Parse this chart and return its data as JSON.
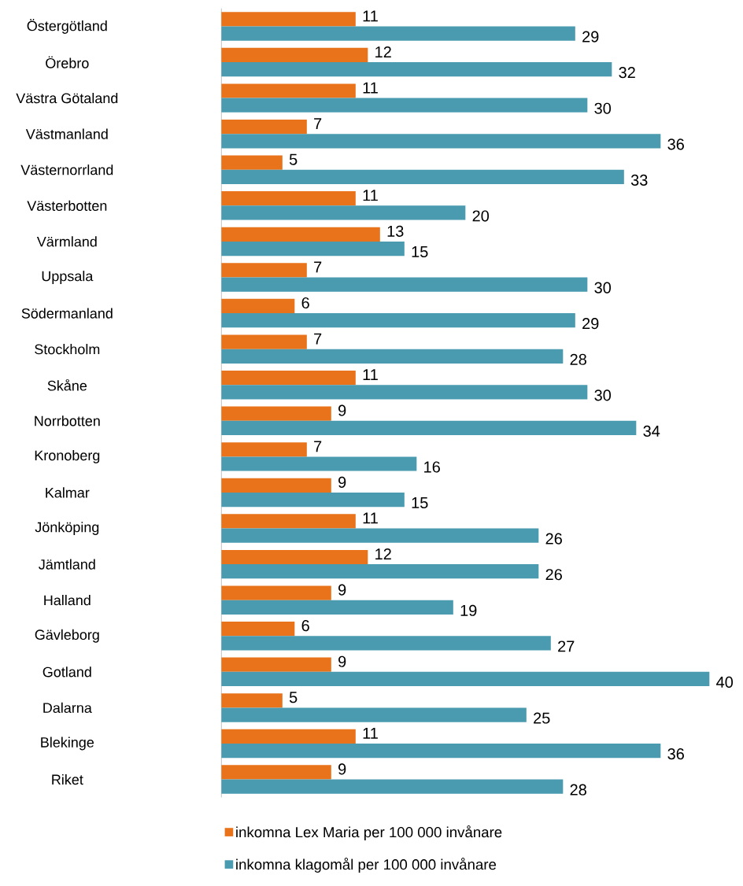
{
  "chart_data": {
    "type": "bar",
    "orientation": "horizontal",
    "categories": [
      "Östergötland",
      "Örebro",
      "Västra Götaland",
      "Västmanland",
      "Västernorrland",
      "Västerbotten",
      "Värmland",
      "Uppsala",
      "Södermanland",
      "Stockholm",
      "Skåne",
      "Norrbotten",
      "Kronoberg",
      "Kalmar",
      "Jönköping",
      "Jämtland",
      "Halland",
      "Gävleborg",
      "Gotland",
      "Dalarna",
      "Blekinge",
      "Riket"
    ],
    "series": [
      {
        "name": "inkomna Lex Maria per 100 000 invånare",
        "color": "#e8731a",
        "values": [
          11,
          12,
          11,
          7,
          5,
          11,
          13,
          7,
          6,
          7,
          11,
          9,
          7,
          9,
          11,
          12,
          9,
          6,
          9,
          5,
          11,
          9
        ]
      },
      {
        "name": "inkomna klagomål per 100 000 invånare",
        "color": "#4a9bb0",
        "values": [
          29,
          32,
          30,
          36,
          33,
          20,
          15,
          30,
          29,
          28,
          30,
          34,
          16,
          15,
          26,
          26,
          19,
          27,
          40,
          25,
          36,
          28
        ]
      }
    ],
    "data_labels": true,
    "legend": "bottom"
  }
}
